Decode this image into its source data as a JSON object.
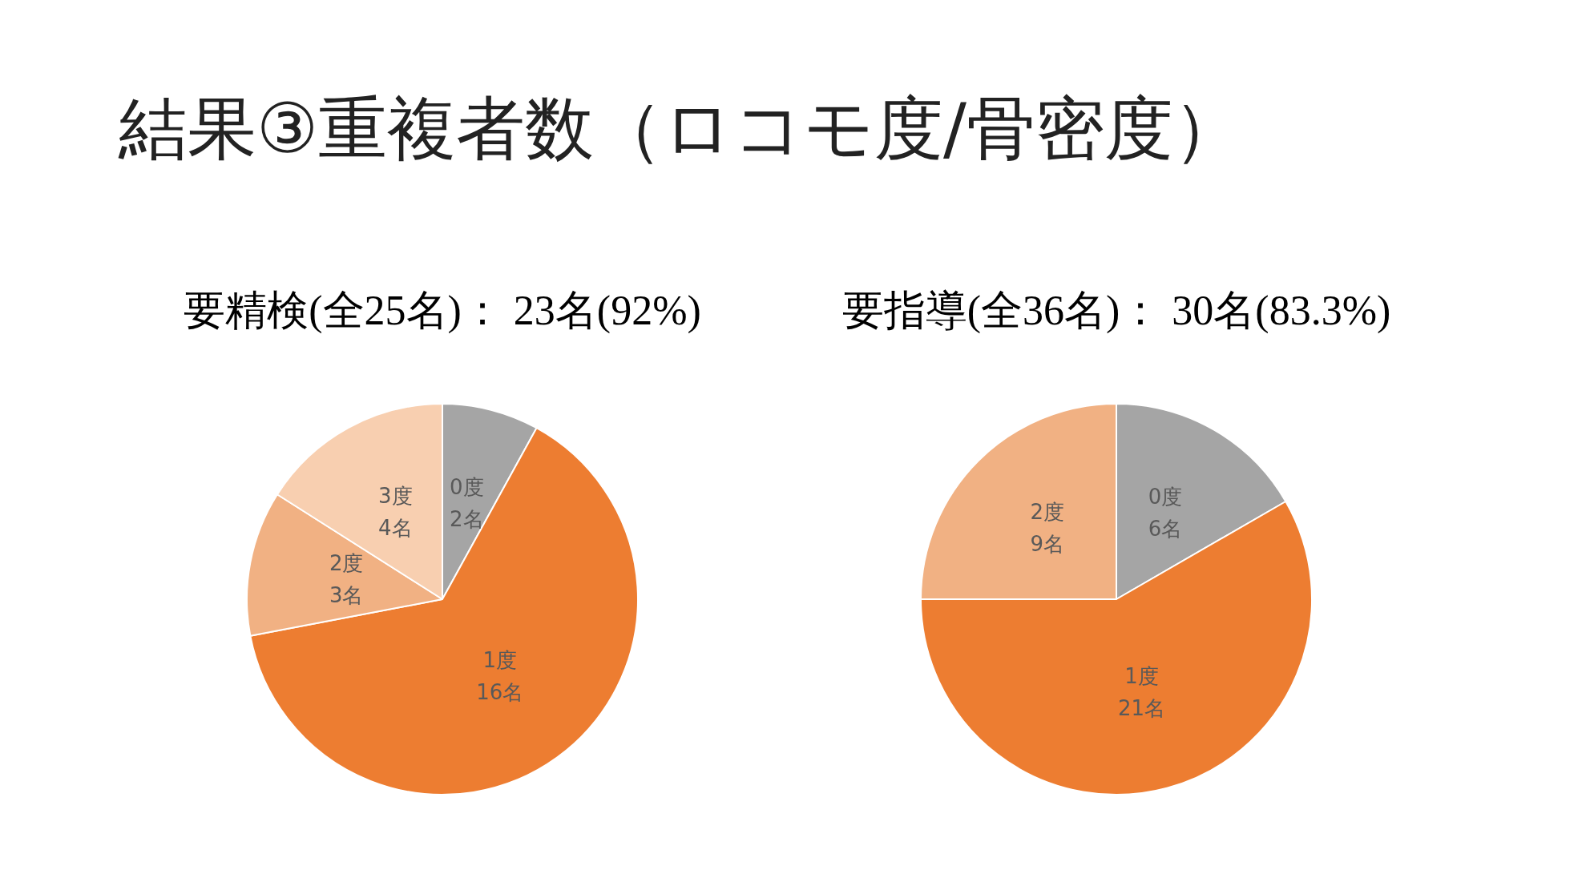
{
  "chart_data": [
    {
      "type": "pie",
      "title": "要精検(全25名)： 23名(92%)",
      "annotations": [
        "結果③重複者数（ロコモ度/骨密度）"
      ],
      "categories": [
        "0度",
        "1度",
        "2度",
        "3度"
      ],
      "values": [
        2,
        16,
        3,
        4
      ],
      "value_labels": [
        "2名",
        "16名",
        "3名",
        "4名"
      ],
      "colors": [
        "#a5a5a5",
        "#ed7d31",
        "#f1b183",
        "#f8cfb0"
      ],
      "legend": false
    },
    {
      "type": "pie",
      "title": "要指導(全36名)： 30名(83.3%)",
      "categories": [
        "0度",
        "1度",
        "2度"
      ],
      "values": [
        6,
        21,
        9
      ],
      "value_labels": [
        "6名",
        "21名",
        "9名"
      ],
      "colors": [
        "#a5a5a5",
        "#ed7d31",
        "#f1b183"
      ],
      "legend": false
    }
  ]
}
